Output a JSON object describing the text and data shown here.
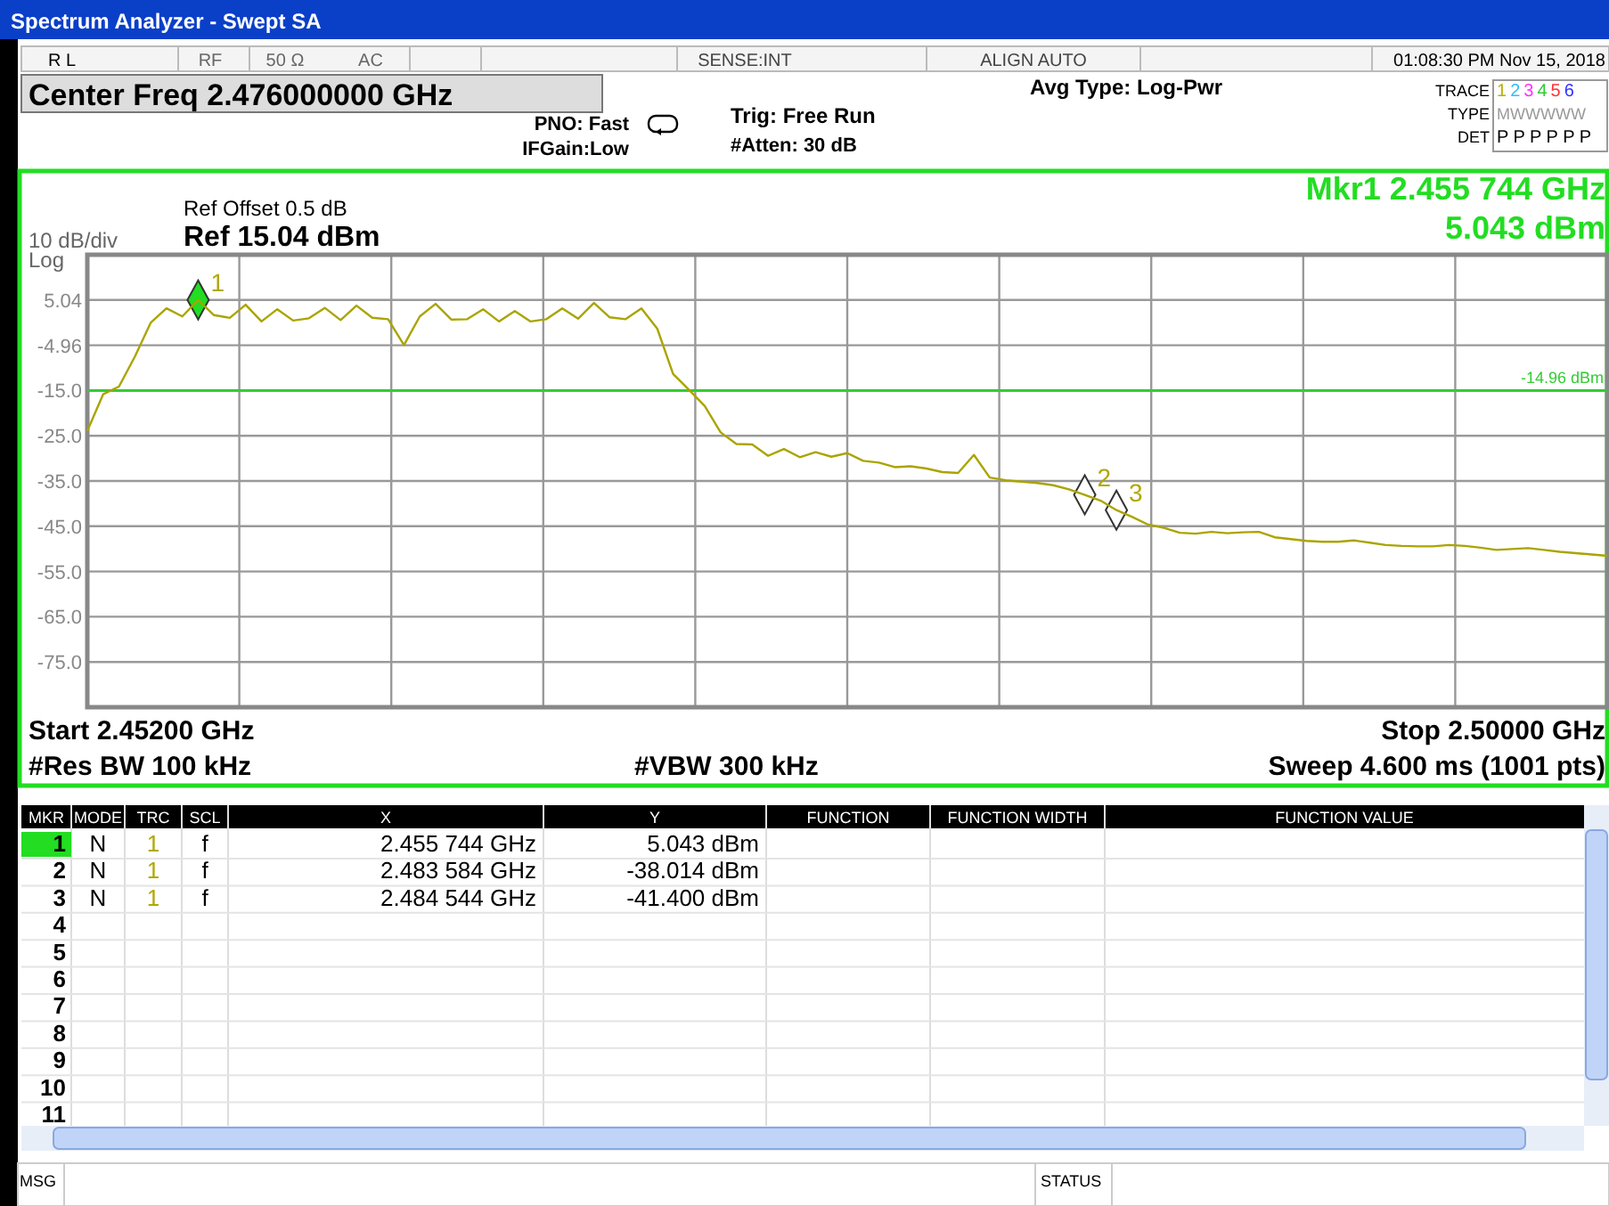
{
  "chart_data": {
    "type": "line",
    "title": "Spectrum Analyzer - Swept SA",
    "categories": [
      null,
      null,
      null,
      null,
      null,
      null,
      null,
      null,
      null,
      null,
      null,
      null,
      null,
      null,
      null,
      null,
      null,
      null,
      null,
      null,
      null,
      null,
      null,
      null,
      null,
      null,
      null,
      null,
      null,
      null,
      null,
      null,
      null,
      null,
      null,
      null,
      null,
      null,
      null,
      null,
      null,
      null,
      null,
      null,
      null,
      null,
      null,
      null,
      null,
      null,
      null,
      null,
      null,
      null,
      null,
      null,
      null,
      null,
      null,
      null,
      null,
      null,
      null,
      null,
      null,
      null,
      null,
      null,
      null,
      null,
      null,
      null,
      null,
      null,
      null,
      null,
      null,
      null,
      null,
      null,
      null,
      null,
      null,
      null,
      null,
      null,
      null,
      null,
      null,
      null,
      null,
      null,
      null,
      null,
      null,
      null,
      null
    ],
    "series": [
      {
        "type": "line",
        "color": "#aaa400",
        "values": [
          -23.9,
          -15.8,
          -14.1,
          -7.5,
          0.0,
          3.2,
          1.4,
          5.043,
          1.7,
          1.1,
          4.0,
          0.3,
          3.0,
          0.5,
          1.0,
          3.3,
          0.6,
          3.8,
          1.1,
          0.8,
          -4.9,
          1.4,
          4.2,
          0.7,
          0.8,
          3.0,
          0.3,
          2.6,
          0.3,
          0.8,
          3.2,
          0.9,
          4.4,
          1.2,
          0.8,
          3.2,
          -1.3,
          -11.3,
          -14.8,
          -18.4,
          -24.2,
          -26.8,
          -26.9,
          -29.4,
          -27.9,
          -29.7,
          -28.6,
          -29.6,
          -28.8,
          -30.5,
          -30.9,
          -31.9,
          -31.7,
          -32.2,
          -33.0,
          -33.2,
          -29.2,
          -34.2,
          -34.8,
          -35.1,
          -35.4,
          -35.9,
          -36.8,
          -38.014,
          -39.3,
          -41.4,
          -42.9,
          -44.6,
          -45.3,
          -46.4,
          -46.6,
          -46.2,
          -46.5,
          -46.3,
          -46.2,
          -47.4,
          -47.8,
          -48.2,
          -48.4,
          -48.4,
          -48.1,
          -48.6,
          -49.1,
          -49.3,
          -49.4,
          -49.4,
          -49.1,
          -49.3,
          -49.7,
          -50.2,
          -50.0,
          -49.8,
          -50.2,
          -50.6,
          -50.9,
          -51.2,
          -51.5
        ]
      },
      {
        "type": "scatter",
        "marker": "diamond",
        "color": "#22dd22",
        "values": [
          null,
          null,
          null,
          null,
          null,
          null,
          null,
          5.043,
          null,
          null,
          null,
          null,
          null,
          null,
          null,
          null,
          null,
          null,
          null,
          null,
          null,
          null,
          null,
          null,
          null,
          null,
          null,
          null,
          null,
          null,
          null,
          null,
          null,
          null,
          null,
          null,
          null,
          null,
          null,
          null,
          null,
          null,
          null,
          null,
          null,
          null,
          null,
          null,
          null,
          null,
          null,
          null,
          null,
          null,
          null,
          null,
          null,
          null,
          null,
          null,
          null,
          null,
          null,
          null,
          null,
          null,
          null,
          null,
          null,
          null,
          null,
          null,
          null,
          null,
          null,
          null,
          null,
          null,
          null,
          null,
          null,
          null,
          null,
          null,
          null,
          null,
          null,
          null,
          null,
          null,
          null,
          null,
          null,
          null,
          null,
          null,
          null
        ]
      },
      {
        "type": "scatter",
        "marker": "diamond",
        "color": "#ffffff",
        "values": [
          null,
          null,
          null,
          null,
          null,
          null,
          null,
          null,
          null,
          null,
          null,
          null,
          null,
          null,
          null,
          null,
          null,
          null,
          null,
          null,
          null,
          null,
          null,
          null,
          null,
          null,
          null,
          null,
          null,
          null,
          null,
          null,
          null,
          null,
          null,
          null,
          null,
          null,
          null,
          null,
          null,
          null,
          null,
          null,
          null,
          null,
          null,
          null,
          null,
          null,
          null,
          null,
          null,
          null,
          null,
          null,
          null,
          null,
          null,
          null,
          null,
          null,
          null,
          -38.014,
          null,
          -41.4,
          null,
          null,
          null,
          null,
          null,
          null,
          null,
          null,
          null,
          null,
          null,
          null,
          null,
          null,
          null,
          null,
          null,
          null,
          null,
          null,
          null,
          null,
          null,
          null,
          null,
          null,
          null,
          null,
          null,
          null,
          null
        ]
      }
    ],
    "ylim": [
      -84.96,
      15.04
    ],
    "yticks": [
      {
        "value": 15.04,
        "label": null
      },
      {
        "value": 5.04,
        "label": "5.04"
      },
      {
        "value": -4.96,
        "label": "-4.96"
      },
      {
        "value": -14.96,
        "label": "-15.0"
      },
      {
        "value": -24.96,
        "label": "-25.0"
      },
      {
        "value": -34.96,
        "label": "-35.0"
      },
      {
        "value": -44.96,
        "label": "-45.0"
      },
      {
        "value": -54.96,
        "label": "-55.0"
      },
      {
        "value": -64.96,
        "label": "-65.0"
      },
      {
        "value": -74.96,
        "label": "-75.0"
      },
      {
        "value": -84.96,
        "label": null
      }
    ],
    "tick_labels": "y",
    "grid": true,
    "ref_lines": [
      {
        "axis": "y",
        "value": -14.96,
        "label": "-14.96 dBm",
        "color": "#33cc33"
      }
    ],
    "annotations": [
      "R L",
      "RF",
      "50 Ω",
      "AC",
      "SENSE:INT",
      "ALIGN AUTO",
      "01:08:30 PM Nov 15, 2018",
      "Center Freq 2.476000000 GHz",
      "PNO: Fast",
      "IFGain:Low",
      "Trig: Free Run",
      "#Atten: 30 dB",
      "Avg Type: Log-Pwr",
      "TRACE",
      "TYPE",
      "DET",
      "1 2 3 4 5 6",
      "MWWWWW",
      "P P P P P P",
      "Ref Offset 0.5 dB",
      "Ref 15.04 dBm",
      "10 dB/div",
      "Log",
      "Mkr1 2.455 744 GHz",
      "5.043 dBm",
      "Start 2.45200 GHz",
      "#Res BW 100 kHz",
      "#VBW 300 kHz",
      "Stop 2.50000 GHz",
      "Sweep  4.600 ms (1001 pts)",
      "MSG",
      "STATUS",
      "MKR",
      "MODE",
      "TRC",
      "SCL",
      "X",
      "Y",
      "FUNCTION",
      "FUNCTION WIDTH",
      "FUNCTION VALUE",
      "1",
      "N",
      "1",
      "f",
      "2.455 744 GHz",
      "5.043 dBm",
      "2",
      "N",
      "1",
      "f",
      "2.483 584 GHz",
      "-38.014 dBm",
      "3",
      "N",
      "1",
      "f",
      "2.484 544 GHz",
      "-41.400 dBm",
      "4",
      "5",
      "6",
      "7",
      "8",
      "9",
      "10",
      "11",
      "1",
      "2",
      "3"
    ]
  }
}
